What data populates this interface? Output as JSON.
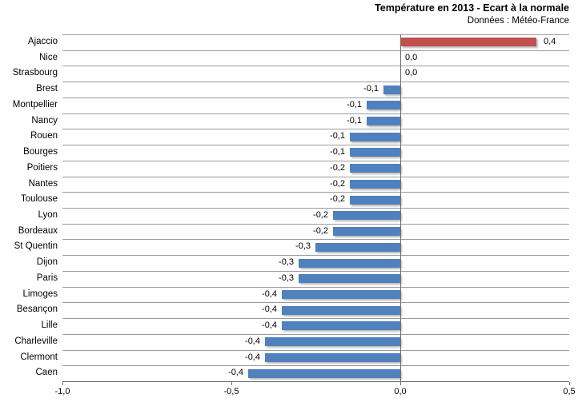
{
  "header": {
    "title": "Température en 2013 - Ecart à la normale",
    "subtitle": "Données : Météo-France"
  },
  "chart_data": {
    "type": "bar",
    "orientation": "horizontal",
    "title": "Température en 2013 - Ecart à la normale",
    "subtitle": "Données : Météo-France",
    "categories": [
      "Ajaccio",
      "Nice",
      "Strasbourg",
      "Brest",
      "Montpellier",
      "Nancy",
      "Rouen",
      "Bourges",
      "Poitiers",
      "Nantes",
      "Toulouse",
      "Lyon",
      "Bordeaux",
      "St Quentin",
      "Dijon",
      "Paris",
      "Limoges",
      "Besançon",
      "Lille",
      "Charleville",
      "Clermont",
      "Caen"
    ],
    "values": [
      0.4,
      0.0,
      0.0,
      -0.1,
      -0.1,
      -0.1,
      -0.1,
      -0.1,
      -0.2,
      -0.2,
      -0.2,
      -0.2,
      -0.2,
      -0.3,
      -0.3,
      -0.3,
      -0.4,
      -0.4,
      -0.4,
      -0.4,
      -0.4,
      -0.4
    ],
    "value_labels": [
      "0,4",
      "0,0",
      "0,0",
      "-0,1",
      "-0,1",
      "-0,1",
      "-0,1",
      "-0,1",
      "-0,2",
      "-0,2",
      "-0,2",
      "-0,2",
      "-0,2",
      "-0,3",
      "-0,3",
      "-0,3",
      "-0,4",
      "-0,4",
      "-0,4",
      "-0,4",
      "-0,4",
      "-0,4"
    ],
    "bar_lengths": [
      0.4,
      0.0,
      0.0,
      -0.05,
      -0.1,
      -0.1,
      -0.15,
      -0.15,
      -0.15,
      -0.15,
      -0.15,
      -0.2,
      -0.2,
      -0.25,
      -0.3,
      -0.3,
      -0.35,
      -0.35,
      -0.35,
      -0.4,
      -0.4,
      -0.45
    ],
    "x_ticks": [
      {
        "label": "-1,0",
        "value": -1.0
      },
      {
        "label": "-0,5",
        "value": -0.5
      },
      {
        "label": "0,0",
        "value": 0.0
      },
      {
        "label": "0,5",
        "value": 0.5
      }
    ],
    "xlim": [
      -1.0,
      0.5
    ],
    "grid": "horizontal",
    "legend": "none",
    "colors": {
      "bar": "#4f81bd",
      "highlight": "#c0504d",
      "gridline": "#9b9b9b",
      "axis": "#707070",
      "text": "#000000"
    },
    "highlight_index": 0
  }
}
